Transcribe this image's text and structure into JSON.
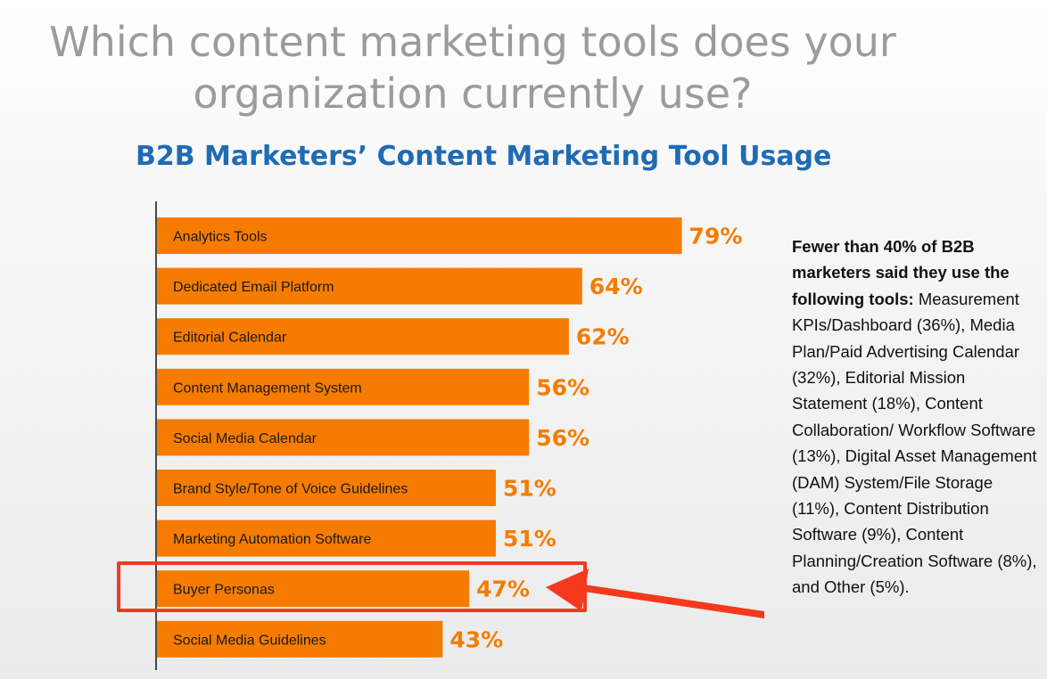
{
  "headline": {
    "line1": "Which content marketing tools does your",
    "line2": "organization currently use?"
  },
  "chart_data": {
    "type": "bar",
    "orientation": "horizontal",
    "title": "B2B Marketers’ Content Marketing Tool Usage",
    "categories": [
      "Analytics Tools",
      "Dedicated Email Platform",
      "Editorial Calendar",
      "Content Management System",
      "Social Media Calendar",
      "Brand Style/Tone of Voice Guidelines",
      "Marketing Automation Software",
      "Buyer Personas",
      "Social Media Guidelines"
    ],
    "values": [
      79,
      64,
      62,
      56,
      56,
      51,
      51,
      47,
      43
    ],
    "value_labels": [
      "79%",
      "64%",
      "62%",
      "56%",
      "56%",
      "51%",
      "51%",
      "47%",
      "43%"
    ],
    "unit": "%",
    "xlim": [
      0,
      100
    ],
    "grid": false,
    "legend": "none",
    "bar_color": "#f57c00",
    "highlighted_category": "Buyer Personas",
    "highlight_color": "#f4391f"
  },
  "note": {
    "bold_lead": "Fewer than 40% of B2B marketers said they use the following tools",
    "colon": ":",
    "body": " Measurement KPIs/Dashboard (36%), Media Plan/Paid Advertising Calendar (32%), Editorial Mission Statement (18%), Content Collaboration/ Workflow Software (13%), Digital Asset Management (DAM) System/File Storage (11%), Content Distribution Software (9%), Content Planning/Creation Software (8%), and Other (5%)."
  },
  "colors": {
    "headline": "#9b9b9b",
    "title": "#1f6bb5",
    "bar": "#f57c00",
    "highlight": "#f4391f"
  }
}
